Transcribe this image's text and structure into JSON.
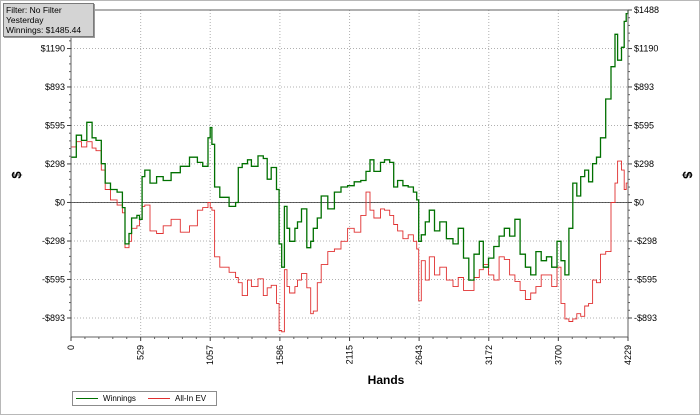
{
  "info_box": {
    "filter": "Filter: No Filter",
    "period": "Yesterday",
    "winnings": "Winnings: $1485.44"
  },
  "legend": {
    "items": [
      {
        "label": "Winnings",
        "color": "#007000"
      },
      {
        "label": "All-In EV",
        "color": "#e03030"
      }
    ]
  },
  "chart_data": {
    "type": "line",
    "xlabel": "Hands",
    "ylabel": "$",
    "xlim": [
      0,
      4229
    ],
    "ylim": [
      -1040,
      1488
    ],
    "x_ticks": [
      {
        "value": 0,
        "label": "0"
      },
      {
        "value": 529,
        "label": "529"
      },
      {
        "value": 1057,
        "label": "1057"
      },
      {
        "value": 1586,
        "label": "1586"
      },
      {
        "value": 2115,
        "label": "2115"
      },
      {
        "value": 2643,
        "label": "2643"
      },
      {
        "value": 3172,
        "label": "3172"
      },
      {
        "value": 3700,
        "label": "3700"
      },
      {
        "value": 4229,
        "label": "4229"
      }
    ],
    "y_ticks": [
      {
        "value": 1488,
        "label": "$1488",
        "right_only": true
      },
      {
        "value": 1190,
        "label": "$1190"
      },
      {
        "value": 893,
        "label": "$893"
      },
      {
        "value": 595,
        "label": "$595"
      },
      {
        "value": 298,
        "label": "$298"
      },
      {
        "value": 0,
        "label": "$0"
      },
      {
        "value": -298,
        "label": "-$298"
      },
      {
        "value": -595,
        "label": "-$595"
      },
      {
        "value": -893,
        "label": "-$893"
      }
    ],
    "grid": true,
    "legend_position": "bottom-left",
    "series": [
      {
        "name": "Winnings",
        "color": "#007000",
        "points": [
          [
            0,
            350
          ],
          [
            40,
            520
          ],
          [
            80,
            480
          ],
          [
            120,
            620
          ],
          [
            160,
            500
          ],
          [
            190,
            480
          ],
          [
            230,
            300
          ],
          [
            260,
            150
          ],
          [
            300,
            100
          ],
          [
            350,
            80
          ],
          [
            390,
            -40
          ],
          [
            410,
            -320
          ],
          [
            440,
            -240
          ],
          [
            460,
            -120
          ],
          [
            500,
            -100
          ],
          [
            520,
            -130
          ],
          [
            540,
            200
          ],
          [
            560,
            250
          ],
          [
            600,
            150
          ],
          [
            650,
            200
          ],
          [
            700,
            170
          ],
          [
            760,
            230
          ],
          [
            830,
            280
          ],
          [
            900,
            350
          ],
          [
            960,
            310
          ],
          [
            1000,
            280
          ],
          [
            1040,
            500
          ],
          [
            1057,
            580
          ],
          [
            1070,
            450
          ],
          [
            1090,
            120
          ],
          [
            1130,
            40
          ],
          [
            1200,
            -30
          ],
          [
            1250,
            0
          ],
          [
            1270,
            270
          ],
          [
            1300,
            300
          ],
          [
            1340,
            330
          ],
          [
            1370,
            280
          ],
          [
            1420,
            360
          ],
          [
            1460,
            340
          ],
          [
            1490,
            180
          ],
          [
            1520,
            270
          ],
          [
            1560,
            100
          ],
          [
            1580,
            -320
          ],
          [
            1600,
            -500
          ],
          [
            1620,
            -30
          ],
          [
            1640,
            -200
          ],
          [
            1660,
            -300
          ],
          [
            1700,
            -200
          ],
          [
            1720,
            -150
          ],
          [
            1750,
            -50
          ],
          [
            1790,
            -350
          ],
          [
            1820,
            -300
          ],
          [
            1840,
            -200
          ],
          [
            1870,
            -120
          ],
          [
            1900,
            50
          ],
          [
            1950,
            -50
          ],
          [
            2000,
            80
          ],
          [
            2050,
            120
          ],
          [
            2100,
            130
          ],
          [
            2150,
            160
          ],
          [
            2200,
            170
          ],
          [
            2240,
            240
          ],
          [
            2270,
            330
          ],
          [
            2300,
            240
          ],
          [
            2350,
            310
          ],
          [
            2380,
            330
          ],
          [
            2420,
            310
          ],
          [
            2450,
            120
          ],
          [
            2480,
            170
          ],
          [
            2520,
            130
          ],
          [
            2560,
            120
          ],
          [
            2600,
            80
          ],
          [
            2625,
            20
          ],
          [
            2640,
            -300
          ],
          [
            2660,
            -250
          ],
          [
            2690,
            -150
          ],
          [
            2720,
            -60
          ],
          [
            2760,
            -220
          ],
          [
            2800,
            -150
          ],
          [
            2850,
            -280
          ],
          [
            2900,
            -320
          ],
          [
            2940,
            -200
          ],
          [
            2980,
            -430
          ],
          [
            3020,
            -600
          ],
          [
            3060,
            -400
          ],
          [
            3100,
            -300
          ],
          [
            3130,
            -500
          ],
          [
            3170,
            -430
          ],
          [
            3210,
            -340
          ],
          [
            3250,
            -260
          ],
          [
            3290,
            -200
          ],
          [
            3330,
            -260
          ],
          [
            3370,
            -130
          ],
          [
            3410,
            -400
          ],
          [
            3450,
            -500
          ],
          [
            3490,
            -560
          ],
          [
            3530,
            -380
          ],
          [
            3570,
            -450
          ],
          [
            3610,
            -420
          ],
          [
            3650,
            -500
          ],
          [
            3690,
            -300
          ],
          [
            3720,
            -450
          ],
          [
            3750,
            -560
          ],
          [
            3780,
            -200
          ],
          [
            3810,
            150
          ],
          [
            3840,
            50
          ],
          [
            3870,
            200
          ],
          [
            3900,
            250
          ],
          [
            3930,
            160
          ],
          [
            3960,
            300
          ],
          [
            3990,
            350
          ],
          [
            4020,
            500
          ],
          [
            4060,
            800
          ],
          [
            4100,
            1050
          ],
          [
            4130,
            1300
          ],
          [
            4150,
            1100
          ],
          [
            4180,
            1200
          ],
          [
            4200,
            1400
          ],
          [
            4215,
            1460
          ],
          [
            4229,
            1485
          ]
        ]
      },
      {
        "name": "All-In EV",
        "color": "#e03030",
        "points": [
          [
            0,
            430
          ],
          [
            40,
            470
          ],
          [
            80,
            430
          ],
          [
            120,
            470
          ],
          [
            160,
            420
          ],
          [
            190,
            400
          ],
          [
            230,
            250
          ],
          [
            260,
            100
          ],
          [
            300,
            20
          ],
          [
            350,
            -20
          ],
          [
            390,
            -80
          ],
          [
            410,
            -350
          ],
          [
            440,
            -300
          ],
          [
            460,
            -200
          ],
          [
            500,
            -180
          ],
          [
            520,
            -130
          ],
          [
            540,
            -30
          ],
          [
            560,
            -20
          ],
          [
            600,
            -220
          ],
          [
            650,
            -240
          ],
          [
            700,
            -180
          ],
          [
            760,
            -130
          ],
          [
            830,
            -230
          ],
          [
            900,
            -180
          ],
          [
            960,
            -60
          ],
          [
            1000,
            -40
          ],
          [
            1040,
            0
          ],
          [
            1057,
            -40
          ],
          [
            1070,
            -60
          ],
          [
            1090,
            -420
          ],
          [
            1130,
            -500
          ],
          [
            1200,
            -540
          ],
          [
            1250,
            -580
          ],
          [
            1270,
            -620
          ],
          [
            1300,
            -720
          ],
          [
            1340,
            -600
          ],
          [
            1370,
            -650
          ],
          [
            1420,
            -590
          ],
          [
            1460,
            -720
          ],
          [
            1490,
            -660
          ],
          [
            1520,
            -640
          ],
          [
            1560,
            -780
          ],
          [
            1580,
            -990
          ],
          [
            1600,
            -1000
          ],
          [
            1620,
            -520
          ],
          [
            1640,
            -650
          ],
          [
            1660,
            -700
          ],
          [
            1700,
            -650
          ],
          [
            1720,
            -600
          ],
          [
            1750,
            -550
          ],
          [
            1790,
            -660
          ],
          [
            1820,
            -860
          ],
          [
            1840,
            -840
          ],
          [
            1870,
            -620
          ],
          [
            1900,
            -480
          ],
          [
            1950,
            -380
          ],
          [
            2000,
            -360
          ],
          [
            2050,
            -300
          ],
          [
            2100,
            -200
          ],
          [
            2150,
            -230
          ],
          [
            2200,
            -100
          ],
          [
            2240,
            80
          ],
          [
            2270,
            -60
          ],
          [
            2300,
            -120
          ],
          [
            2350,
            -50
          ],
          [
            2380,
            -60
          ],
          [
            2420,
            -100
          ],
          [
            2450,
            -170
          ],
          [
            2480,
            -220
          ],
          [
            2520,
            -280
          ],
          [
            2560,
            -250
          ],
          [
            2600,
            -300
          ],
          [
            2625,
            -360
          ],
          [
            2640,
            -760
          ],
          [
            2660,
            -450
          ],
          [
            2690,
            -600
          ],
          [
            2720,
            -420
          ],
          [
            2760,
            -560
          ],
          [
            2800,
            -500
          ],
          [
            2850,
            -600
          ],
          [
            2900,
            -650
          ],
          [
            2940,
            -580
          ],
          [
            2980,
            -680
          ],
          [
            3020,
            -680
          ],
          [
            3060,
            -580
          ],
          [
            3100,
            -520
          ],
          [
            3130,
            -480
          ],
          [
            3170,
            -560
          ],
          [
            3210,
            -600
          ],
          [
            3250,
            -420
          ],
          [
            3290,
            -440
          ],
          [
            3330,
            -560
          ],
          [
            3370,
            -610
          ],
          [
            3410,
            -680
          ],
          [
            3450,
            -750
          ],
          [
            3490,
            -700
          ],
          [
            3530,
            -650
          ],
          [
            3570,
            -560
          ],
          [
            3610,
            -560
          ],
          [
            3650,
            -650
          ],
          [
            3690,
            -500
          ],
          [
            3720,
            -780
          ],
          [
            3750,
            -900
          ],
          [
            3780,
            -920
          ],
          [
            3810,
            -900
          ],
          [
            3840,
            -860
          ],
          [
            3870,
            -880
          ],
          [
            3900,
            -800
          ],
          [
            3930,
            -780
          ],
          [
            3960,
            -600
          ],
          [
            3990,
            -620
          ],
          [
            4020,
            -400
          ],
          [
            4060,
            -380
          ],
          [
            4100,
            0
          ],
          [
            4130,
            150
          ],
          [
            4150,
            320
          ],
          [
            4180,
            250
          ],
          [
            4200,
            100
          ],
          [
            4215,
            150
          ],
          [
            4229,
            120
          ]
        ]
      }
    ]
  }
}
